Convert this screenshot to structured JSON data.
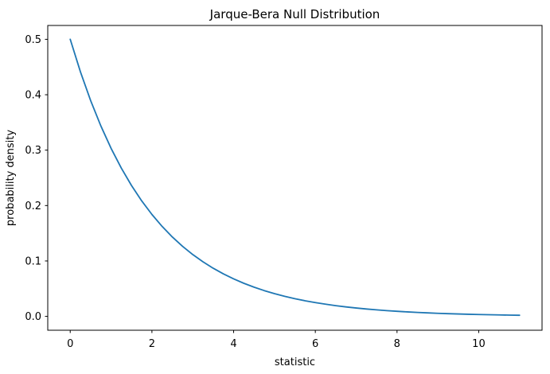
{
  "chart_data": {
    "type": "line",
    "title": "Jarque-Bera Null Distribution",
    "xlabel": "statistic",
    "ylabel": "probability density",
    "grid": false,
    "legend": null,
    "background": "#ffffff",
    "spine_color": "#000000",
    "xlim": [
      -0.55,
      11.55
    ],
    "ylim": [
      -0.025,
      0.525
    ],
    "xticks": [
      0,
      2,
      4,
      6,
      8,
      10
    ],
    "xtick_labels": [
      "0",
      "2",
      "4",
      "6",
      "8",
      "10"
    ],
    "yticks": [
      0.0,
      0.1,
      0.2,
      0.3,
      0.4,
      0.5
    ],
    "ytick_labels": [
      "0.0",
      "0.1",
      "0.2",
      "0.3",
      "0.4",
      "0.5"
    ],
    "series": [
      {
        "name": "null-distribution-pdf",
        "color": "#1f77b4",
        "line_width": 1.8,
        "x": [
          0,
          0.25,
          0.5,
          0.75,
          1,
          1.25,
          1.5,
          1.75,
          2,
          2.25,
          2.5,
          2.75,
          3,
          3.25,
          3.5,
          3.75,
          4,
          4.25,
          4.5,
          4.75,
          5,
          5.25,
          5.5,
          5.75,
          6,
          6.25,
          6.5,
          6.75,
          7,
          7.25,
          7.5,
          7.75,
          8,
          8.25,
          8.5,
          8.75,
          9,
          9.25,
          9.5,
          9.75,
          10,
          10.25,
          10.5,
          10.75,
          11
        ],
        "y": [
          0.5,
          0.44125,
          0.3894,
          0.34364,
          0.30327,
          0.26763,
          0.23618,
          0.20843,
          0.18394,
          0.16233,
          0.14325,
          0.12642,
          0.11157,
          0.09846,
          0.08689,
          0.07668,
          0.06767,
          0.05972,
          0.0527,
          0.04651,
          0.04104,
          0.03622,
          0.03196,
          0.02821,
          0.02489,
          0.02197,
          0.01939,
          0.01711,
          0.0151,
          0.01332,
          0.01176,
          0.01038,
          0.00916,
          0.00808,
          0.00713,
          0.00629,
          0.00555,
          0.0049,
          0.00433,
          0.00382,
          0.00337,
          0.00297,
          0.00262,
          0.00232,
          0.00204
        ]
      }
    ]
  }
}
